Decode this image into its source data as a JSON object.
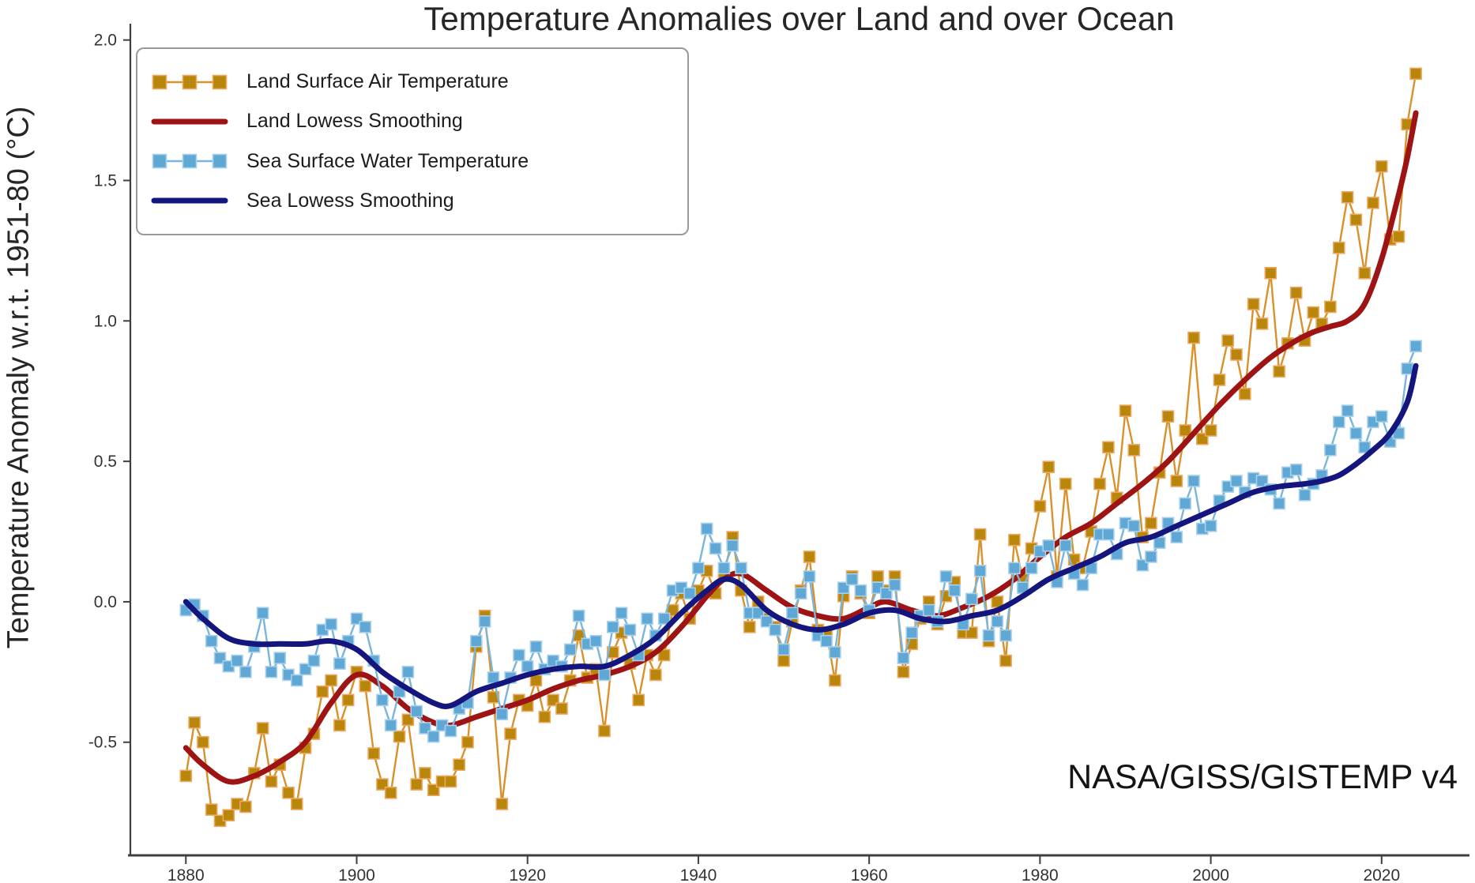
{
  "chart": {
    "title": "Temperature Anomalies over Land and over Ocean",
    "y_axis_label": "Temperature Anomaly w.r.t. 1951-80 (°C)",
    "attribution": "NASA/GISS/GISTEMP v4",
    "colors": {
      "land_marker": "#B8860B",
      "land_marker_edge": "#EDA75F",
      "land_line": "#D9912C",
      "land_lowess": "#9E1414",
      "sea_marker": "#5FA8D5",
      "sea_marker_edge": "#A8D0EA",
      "sea_line": "#7AB5DC",
      "sea_lowess": "#15157E",
      "axis": "#3F3F3F",
      "tick_text": "#333333"
    }
  },
  "chart_data": {
    "type": "line",
    "title": "Temperature Anomalies over Land and over Ocean",
    "xlabel": "",
    "ylabel": "Temperature Anomaly w.r.t. 1951-80 (°C)",
    "xlim": [
      1873.5,
      2030.1
    ],
    "ylim": [
      -0.9,
      2.03
    ],
    "x_ticks": [
      1880,
      1900,
      1920,
      1940,
      1960,
      1980,
      2000,
      2020
    ],
    "y_ticks": [
      "2.0",
      "1.5",
      "1.0",
      "0.5",
      "0.0",
      "-0.5"
    ],
    "y_tick_values": [
      2.0,
      1.5,
      1.0,
      0.5,
      0.0,
      -0.5
    ],
    "grid": false,
    "legend_position": "upper left",
    "x_start_year": 1880,
    "x_end_year": 2024,
    "series": [
      {
        "name": "Land Surface Air Temperature",
        "type": "line+markers",
        "marker": "square",
        "color_key": "land",
        "values": [
          -0.62,
          -0.43,
          -0.5,
          -0.74,
          -0.78,
          -0.76,
          -0.72,
          -0.73,
          -0.61,
          -0.45,
          -0.64,
          -0.58,
          -0.68,
          -0.72,
          -0.52,
          -0.47,
          -0.32,
          -0.28,
          -0.44,
          -0.35,
          -0.25,
          -0.3,
          -0.54,
          -0.65,
          -0.68,
          -0.48,
          -0.42,
          -0.65,
          -0.61,
          -0.67,
          -0.64,
          -0.64,
          -0.58,
          -0.5,
          -0.16,
          -0.05,
          -0.34,
          -0.72,
          -0.47,
          -0.35,
          -0.37,
          -0.28,
          -0.41,
          -0.35,
          -0.38,
          -0.28,
          -0.12,
          -0.27,
          -0.24,
          -0.46,
          -0.18,
          -0.11,
          -0.22,
          -0.35,
          -0.19,
          -0.26,
          -0.19,
          -0.03,
          0.03,
          -0.06,
          0.04,
          0.11,
          0.03,
          0.1,
          0.23,
          0.04,
          -0.09,
          0.0,
          -0.06,
          -0.09,
          -0.21,
          -0.07,
          0.04,
          0.16,
          -0.1,
          -0.11,
          -0.28,
          0.02,
          0.09,
          0.03,
          -0.04,
          0.09,
          0.04,
          0.09,
          -0.25,
          -0.15,
          -0.06,
          0.0,
          -0.08,
          0.02,
          0.07,
          -0.11,
          -0.11,
          0.24,
          -0.14,
          0.0,
          -0.21,
          0.22,
          0.08,
          0.19,
          0.34,
          0.48,
          0.09,
          0.42,
          0.15,
          0.12,
          0.25,
          0.42,
          0.55,
          0.37,
          0.68,
          0.54,
          0.23,
          0.28,
          0.46,
          0.66,
          0.43,
          0.61,
          0.94,
          0.58,
          0.61,
          0.79,
          0.93,
          0.88,
          0.74,
          1.06,
          0.99,
          1.17,
          0.82,
          0.92,
          1.1,
          0.93,
          1.03,
          0.99,
          1.05,
          1.26,
          1.44,
          1.36,
          1.17,
          1.42,
          1.55,
          1.29,
          1.3,
          1.7,
          1.88
        ]
      },
      {
        "name": "Land Lowess Smoothing",
        "type": "smooth-line",
        "color_key": "land_lowess",
        "anchors": [
          [
            1880,
            -0.52
          ],
          [
            1882,
            -0.58
          ],
          [
            1885,
            -0.64
          ],
          [
            1888,
            -0.62
          ],
          [
            1891,
            -0.57
          ],
          [
            1894,
            -0.5
          ],
          [
            1897,
            -0.36
          ],
          [
            1900,
            -0.26
          ],
          [
            1903,
            -0.3
          ],
          [
            1906,
            -0.38
          ],
          [
            1909,
            -0.43
          ],
          [
            1911,
            -0.44
          ],
          [
            1914,
            -0.41
          ],
          [
            1917,
            -0.38
          ],
          [
            1920,
            -0.35
          ],
          [
            1923,
            -0.31
          ],
          [
            1926,
            -0.28
          ],
          [
            1929,
            -0.26
          ],
          [
            1932,
            -0.23
          ],
          [
            1935,
            -0.18
          ],
          [
            1938,
            -0.09
          ],
          [
            1941,
            0.02
          ],
          [
            1943,
            0.08
          ],
          [
            1945,
            0.1
          ],
          [
            1948,
            0.04
          ],
          [
            1951,
            -0.02
          ],
          [
            1954,
            -0.05
          ],
          [
            1957,
            -0.06
          ],
          [
            1960,
            -0.02
          ],
          [
            1962,
            0.0
          ],
          [
            1965,
            -0.03
          ],
          [
            1968,
            -0.05
          ],
          [
            1971,
            -0.02
          ],
          [
            1974,
            0.02
          ],
          [
            1977,
            0.08
          ],
          [
            1980,
            0.16
          ],
          [
            1983,
            0.23
          ],
          [
            1986,
            0.28
          ],
          [
            1989,
            0.35
          ],
          [
            1992,
            0.42
          ],
          [
            1995,
            0.5
          ],
          [
            1998,
            0.6
          ],
          [
            2001,
            0.7
          ],
          [
            2004,
            0.79
          ],
          [
            2007,
            0.87
          ],
          [
            2010,
            0.93
          ],
          [
            2012,
            0.96
          ],
          [
            2014,
            0.98
          ],
          [
            2016,
            1.0
          ],
          [
            2018,
            1.06
          ],
          [
            2020,
            1.22
          ],
          [
            2022,
            1.45
          ],
          [
            2023,
            1.58
          ],
          [
            2024,
            1.74
          ]
        ]
      },
      {
        "name": "Sea Surface Water Temperature",
        "type": "line+markers",
        "marker": "square",
        "color_key": "sea",
        "values": [
          -0.03,
          -0.01,
          -0.05,
          -0.14,
          -0.2,
          -0.23,
          -0.21,
          -0.25,
          -0.16,
          -0.04,
          -0.25,
          -0.2,
          -0.26,
          -0.28,
          -0.24,
          -0.21,
          -0.1,
          -0.08,
          -0.22,
          -0.14,
          -0.06,
          -0.09,
          -0.21,
          -0.35,
          -0.44,
          -0.32,
          -0.25,
          -0.39,
          -0.45,
          -0.48,
          -0.44,
          -0.46,
          -0.38,
          -0.36,
          -0.14,
          -0.07,
          -0.27,
          -0.4,
          -0.27,
          -0.19,
          -0.23,
          -0.16,
          -0.24,
          -0.21,
          -0.23,
          -0.17,
          -0.05,
          -0.15,
          -0.14,
          -0.26,
          -0.09,
          -0.04,
          -0.1,
          -0.19,
          -0.06,
          -0.12,
          -0.06,
          0.04,
          0.05,
          0.03,
          0.12,
          0.26,
          0.19,
          0.12,
          0.2,
          0.12,
          -0.04,
          -0.04,
          -0.07,
          -0.1,
          -0.17,
          -0.04,
          0.03,
          0.09,
          -0.12,
          -0.14,
          -0.18,
          0.05,
          0.08,
          0.04,
          -0.03,
          0.05,
          0.03,
          0.06,
          -0.2,
          -0.11,
          -0.05,
          -0.03,
          -0.07,
          0.09,
          0.04,
          -0.08,
          0.01,
          0.11,
          -0.12,
          -0.07,
          -0.12,
          0.12,
          0.05,
          0.12,
          0.18,
          0.2,
          0.07,
          0.2,
          0.1,
          0.06,
          0.12,
          0.24,
          0.24,
          0.17,
          0.28,
          0.27,
          0.13,
          0.16,
          0.21,
          0.28,
          0.23,
          0.35,
          0.43,
          0.26,
          0.27,
          0.36,
          0.41,
          0.43,
          0.39,
          0.44,
          0.43,
          0.4,
          0.35,
          0.46,
          0.47,
          0.38,
          0.42,
          0.45,
          0.54,
          0.64,
          0.68,
          0.6,
          0.55,
          0.64,
          0.66,
          0.57,
          0.6,
          0.83,
          0.91
        ]
      },
      {
        "name": "Sea Lowess Smoothing",
        "type": "smooth-line",
        "color_key": "sea_lowess",
        "anchors": [
          [
            1880,
            0.0
          ],
          [
            1882,
            -0.06
          ],
          [
            1885,
            -0.13
          ],
          [
            1888,
            -0.15
          ],
          [
            1891,
            -0.15
          ],
          [
            1894,
            -0.15
          ],
          [
            1897,
            -0.14
          ],
          [
            1900,
            -0.17
          ],
          [
            1903,
            -0.25
          ],
          [
            1906,
            -0.31
          ],
          [
            1909,
            -0.36
          ],
          [
            1911,
            -0.37
          ],
          [
            1914,
            -0.32
          ],
          [
            1917,
            -0.29
          ],
          [
            1920,
            -0.26
          ],
          [
            1923,
            -0.24
          ],
          [
            1926,
            -0.23
          ],
          [
            1929,
            -0.23
          ],
          [
            1932,
            -0.19
          ],
          [
            1935,
            -0.13
          ],
          [
            1938,
            -0.04
          ],
          [
            1941,
            0.04
          ],
          [
            1943,
            0.08
          ],
          [
            1945,
            0.06
          ],
          [
            1948,
            -0.03
          ],
          [
            1951,
            -0.08
          ],
          [
            1954,
            -0.1
          ],
          [
            1957,
            -0.08
          ],
          [
            1960,
            -0.04
          ],
          [
            1963,
            -0.03
          ],
          [
            1966,
            -0.06
          ],
          [
            1969,
            -0.07
          ],
          [
            1972,
            -0.05
          ],
          [
            1975,
            -0.03
          ],
          [
            1978,
            0.02
          ],
          [
            1981,
            0.08
          ],
          [
            1984,
            0.12
          ],
          [
            1987,
            0.16
          ],
          [
            1990,
            0.21
          ],
          [
            1993,
            0.23
          ],
          [
            1996,
            0.27
          ],
          [
            1999,
            0.31
          ],
          [
            2002,
            0.35
          ],
          [
            2005,
            0.39
          ],
          [
            2008,
            0.41
          ],
          [
            2011,
            0.42
          ],
          [
            2013,
            0.43
          ],
          [
            2015,
            0.45
          ],
          [
            2017,
            0.49
          ],
          [
            2019,
            0.54
          ],
          [
            2021,
            0.6
          ],
          [
            2023,
            0.71
          ],
          [
            2024,
            0.84
          ]
        ]
      }
    ]
  }
}
